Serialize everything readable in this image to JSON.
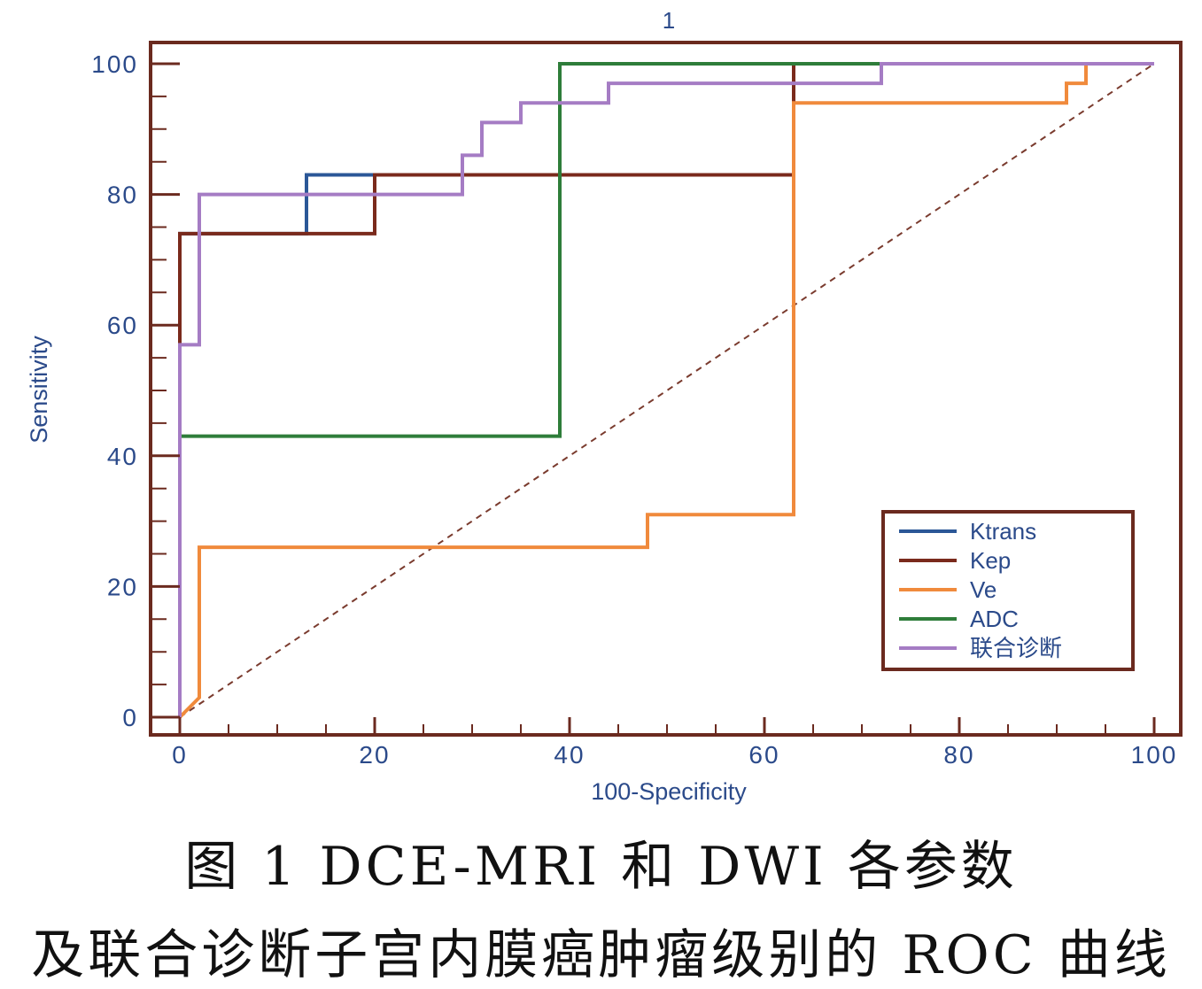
{
  "chart_data": {
    "type": "line",
    "title": "1",
    "xlabel": "100-Specificity",
    "ylabel": "Sensitivity",
    "xlim": [
      -3,
      103
    ],
    "ylim": [
      -3,
      103
    ],
    "xticks": [
      0,
      20,
      40,
      60,
      80,
      100
    ],
    "yticks": [
      0,
      20,
      40,
      60,
      80,
      100
    ],
    "minor_step": 5,
    "legend_position": "bottom-right",
    "reference_line": {
      "x": [
        0,
        100
      ],
      "y": [
        0,
        100
      ],
      "style": "dashed",
      "color": "#7a3b2e"
    },
    "series": [
      {
        "name": "Ktrans",
        "color": "#2b5797",
        "x": [
          0,
          0,
          13,
          13,
          20,
          20,
          63,
          63,
          100
        ],
        "y": [
          0,
          74,
          74,
          83,
          83,
          83,
          83,
          100,
          100
        ]
      },
      {
        "name": "Kep",
        "color": "#7a2a1c",
        "x": [
          0,
          0,
          20,
          20,
          63,
          63,
          100
        ],
        "y": [
          0,
          74,
          74,
          83,
          83,
          100,
          100
        ]
      },
      {
        "name": "Ve",
        "color": "#f08a3c",
        "x": [
          0,
          2,
          2,
          48,
          48,
          63,
          63,
          91,
          91,
          93,
          93,
          100
        ],
        "y": [
          0,
          3,
          26,
          26,
          31,
          31,
          94,
          94,
          97,
          97,
          100,
          100
        ]
      },
      {
        "name": "ADC",
        "color": "#2e7d3a",
        "x": [
          0,
          0,
          39,
          39,
          100
        ],
        "y": [
          0,
          43,
          43,
          100,
          100
        ]
      },
      {
        "name": "联合诊断",
        "color": "#a57cc4",
        "x": [
          0,
          0,
          2,
          2,
          29,
          29,
          31,
          31,
          35,
          35,
          44,
          44,
          72,
          72,
          100
        ],
        "y": [
          0,
          57,
          57,
          80,
          80,
          86,
          86,
          91,
          91,
          94,
          94,
          97,
          97,
          100,
          100
        ]
      }
    ]
  },
  "caption": {
    "line1": "图 1   DCE-MRI 和 DWI 各参数",
    "line2": "及联合诊断子宫内膜癌肿瘤级别的 ROC 曲线"
  }
}
